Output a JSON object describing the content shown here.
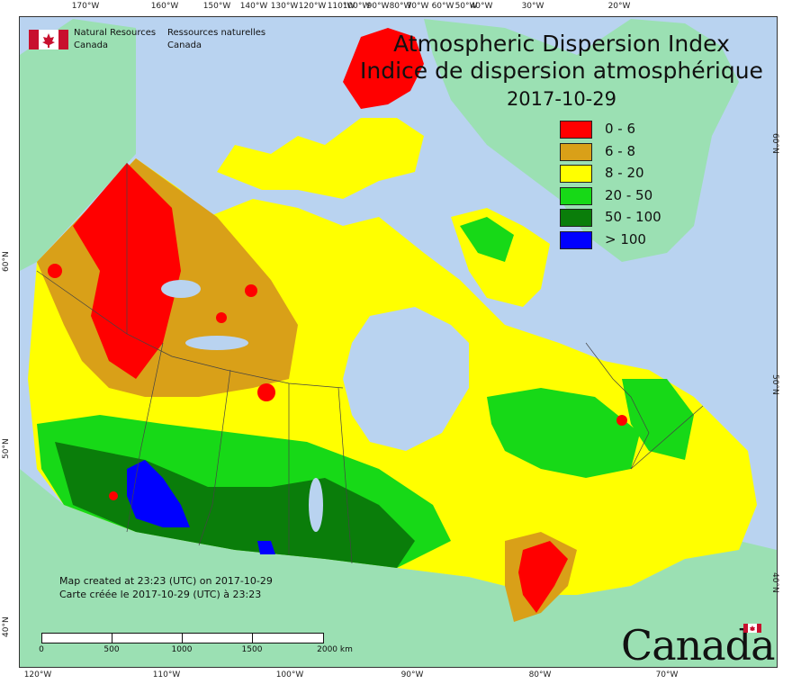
{
  "map": {
    "title_en": "Atmospheric Dispersion Index",
    "title_fr": "Indice de dispersion atmosphérique",
    "date": "2017-10-29",
    "agency_en_line1": "Natural Resources",
    "agency_en_line2": "Canada",
    "agency_fr_line1": "Ressources naturelles",
    "agency_fr_line2": "Canada",
    "credit_en": "Map created at 23:23 (UTC) on 2017-10-29",
    "credit_fr": "Carte créée le 2017-10-29 (UTC) à 23:23",
    "wordmark": "Canada",
    "colors": {
      "ocean": "#b9d3f0",
      "land_other": "#9be0b3"
    }
  },
  "legend": [
    {
      "label": "0 - 6",
      "color": "#ff0000"
    },
    {
      "label": "6 - 8",
      "color": "#d9a018"
    },
    {
      "label": "8 - 20",
      "color": "#ffff00"
    },
    {
      "label": "20 - 50",
      "color": "#17d917"
    },
    {
      "label": "50 - 100",
      "color": "#0a7d0a"
    },
    {
      "label": "> 100",
      "color": "#0000ff"
    }
  ],
  "graticule": {
    "top_labels": [
      "170°W",
      "160°W",
      "150°W",
      "140°W",
      "130°W",
      "120°W",
      "110°W",
      "100°W",
      "90°W",
      "80°W",
      "70°W",
      "60°W",
      "50°W",
      "40°W",
      "30°W",
      "20°W"
    ],
    "bottom_labels": [
      "120°W",
      "110°W",
      "100°W",
      "90°W",
      "80°W",
      "70°W"
    ],
    "left_labels": [
      "60°N",
      "50°N",
      "40°N"
    ],
    "right_labels": [
      "60°N",
      "50°N",
      "40°N"
    ]
  },
  "scale": {
    "labels": [
      "0",
      "500",
      "1000",
      "1500",
      "2000 km"
    ]
  }
}
